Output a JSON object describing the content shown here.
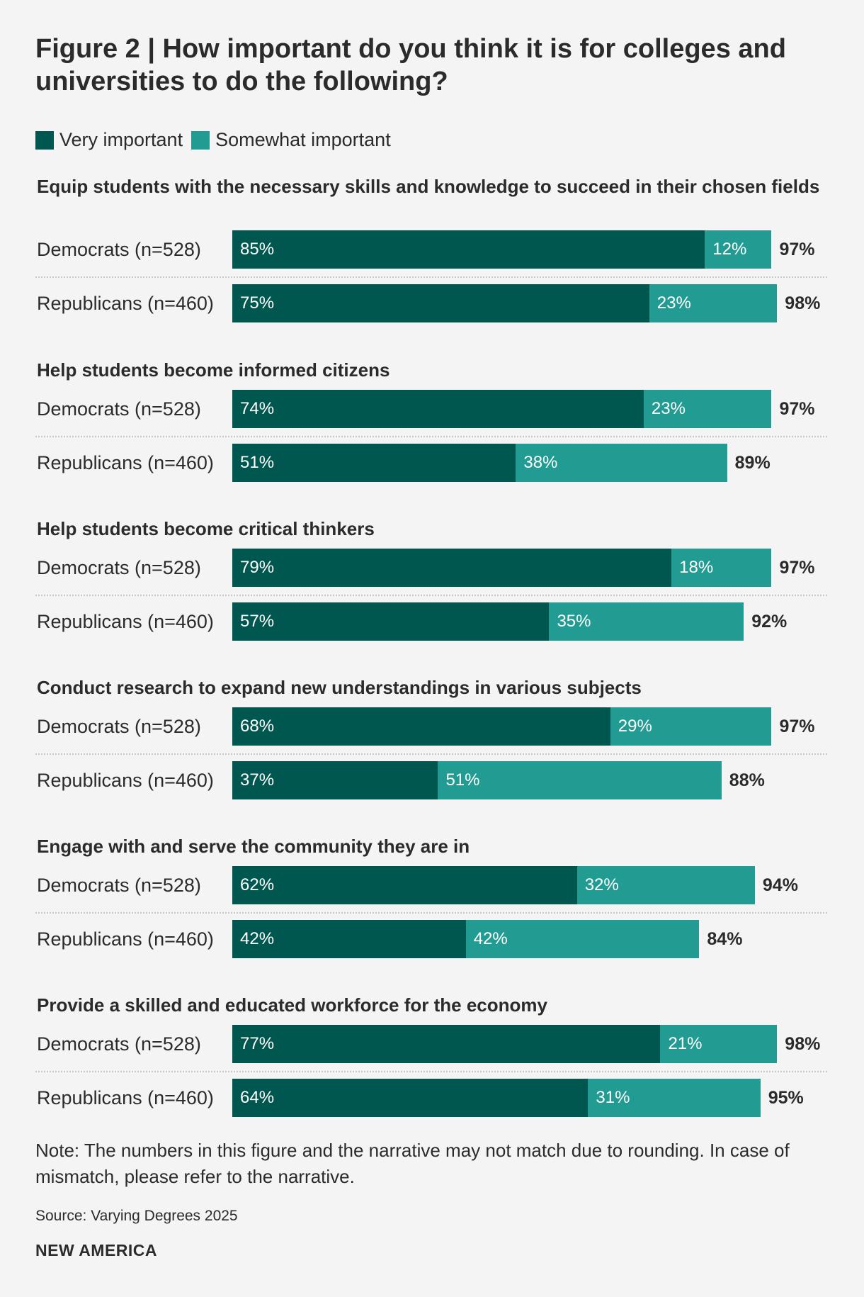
{
  "title": "Figure 2 | How important do you think it is for colleges and universities to do the following?",
  "legend": [
    {
      "label": "Very important",
      "color": "#00574f"
    },
    {
      "label": "Somewhat important",
      "color": "#229c93"
    }
  ],
  "note": "Note: The numbers in this figure and the narrative may not match due to rounding. In case of mismatch, please refer to the narrative.",
  "source": "Source: Varying Degrees 2025",
  "brand": "NEW AMERICA",
  "chart_data": {
    "type": "bar",
    "orientation": "horizontal",
    "stacked": true,
    "xlim": [
      0,
      100
    ],
    "series": [
      {
        "name": "Very important",
        "color": "#00574f"
      },
      {
        "name": "Somewhat important",
        "color": "#229c93"
      }
    ],
    "groups": [
      {
        "title": "Equip students with the necessary skills and knowledge to succeed in their chosen fields",
        "rows": [
          {
            "label": "Democrats (n=528)",
            "values": [
              85,
              12
            ],
            "value_labels": [
              "85%",
              "12%"
            ],
            "total": "97%"
          },
          {
            "label": "Republicans (n=460)",
            "values": [
              75,
              23
            ],
            "value_labels": [
              "75%",
              "23%"
            ],
            "total": "98%"
          }
        ]
      },
      {
        "title": "Help students become informed citizens",
        "rows": [
          {
            "label": "Democrats (n=528)",
            "values": [
              74,
              23
            ],
            "value_labels": [
              "74%",
              "23%"
            ],
            "total": "97%"
          },
          {
            "label": "Republicans (n=460)",
            "values": [
              51,
              38
            ],
            "value_labels": [
              "51%",
              "38%"
            ],
            "total": "89%"
          }
        ]
      },
      {
        "title": "Help students become critical thinkers",
        "rows": [
          {
            "label": "Democrats (n=528)",
            "values": [
              79,
              18
            ],
            "value_labels": [
              "79%",
              "18%"
            ],
            "total": "97%"
          },
          {
            "label": "Republicans (n=460)",
            "values": [
              57,
              35
            ],
            "value_labels": [
              "57%",
              "35%"
            ],
            "total": "92%"
          }
        ]
      },
      {
        "title": "Conduct research to expand new understandings in various subjects",
        "rows": [
          {
            "label": "Democrats (n=528)",
            "values": [
              68,
              29
            ],
            "value_labels": [
              "68%",
              "29%"
            ],
            "total": "97%"
          },
          {
            "label": "Republicans (n=460)",
            "values": [
              37,
              51
            ],
            "value_labels": [
              "37%",
              "51%"
            ],
            "total": "88%"
          }
        ]
      },
      {
        "title": "Engage with and serve the community they are in",
        "rows": [
          {
            "label": "Democrats (n=528)",
            "values": [
              62,
              32
            ],
            "value_labels": [
              "62%",
              "32%"
            ],
            "total": "94%"
          },
          {
            "label": "Republicans (n=460)",
            "values": [
              42,
              42
            ],
            "value_labels": [
              "42%",
              "42%"
            ],
            "total": "84%"
          }
        ]
      },
      {
        "title": "Provide a skilled and educated workforce for the economy",
        "rows": [
          {
            "label": "Democrats (n=528)",
            "values": [
              77,
              21
            ],
            "value_labels": [
              "77%",
              "21%"
            ],
            "total": "98%"
          },
          {
            "label": "Republicans (n=460)",
            "values": [
              64,
              31
            ],
            "value_labels": [
              "64%",
              "31%"
            ],
            "total": "95%"
          }
        ]
      }
    ]
  }
}
